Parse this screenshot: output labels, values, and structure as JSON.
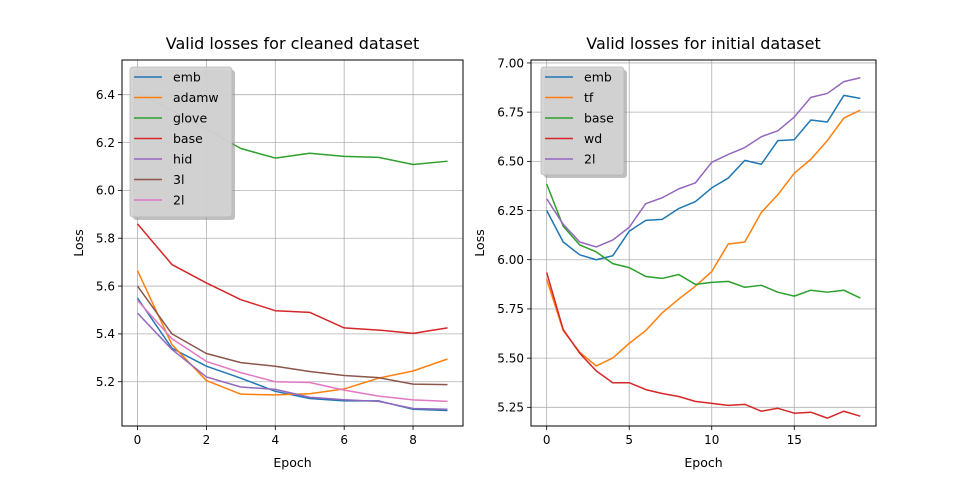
{
  "chart_data": [
    {
      "type": "line",
      "title": "Valid losses for cleaned dataset",
      "xlabel": "Epoch",
      "ylabel": "Loss",
      "xlim": [
        -0.45,
        9.45
      ],
      "ylim": [
        5.015,
        6.545
      ],
      "xticks": [
        0,
        2,
        4,
        6,
        8
      ],
      "xtick_labels": [
        "0",
        "2",
        "4",
        "6",
        "8"
      ],
      "yticks": [
        5.2,
        5.4,
        5.6,
        5.8,
        6.0,
        6.2,
        6.4
      ],
      "ytick_labels": [
        "5.2",
        "5.4",
        "5.6",
        "5.8",
        "6.0",
        "6.2",
        "6.4"
      ],
      "grid": true,
      "legend_position": "upper-left",
      "x": [
        0,
        1,
        2,
        3,
        4,
        5,
        6,
        7,
        8,
        9
      ],
      "series": [
        {
          "name": "emb",
          "color": "#1f77b4",
          "values": [
            5.55,
            5.34,
            5.265,
            5.215,
            5.16,
            5.13,
            5.12,
            5.12,
            5.085,
            5.08
          ]
        },
        {
          "name": "adamw",
          "color": "#ff7f0e",
          "values": [
            5.665,
            5.355,
            5.205,
            5.148,
            5.145,
            5.15,
            5.17,
            5.215,
            5.245,
            5.295
          ]
        },
        {
          "name": "glove",
          "color": "#2ca02c",
          "values": [
            6.41,
            6.335,
            6.255,
            6.175,
            6.135,
            6.155,
            6.142,
            6.138,
            6.108,
            6.122
          ]
        },
        {
          "name": "base",
          "color": "#d62728",
          "values": [
            5.86,
            5.69,
            5.613,
            5.543,
            5.497,
            5.49,
            5.425,
            5.416,
            5.402,
            5.425
          ]
        },
        {
          "name": "hid",
          "color": "#9467bd",
          "values": [
            5.487,
            5.335,
            5.22,
            5.178,
            5.168,
            5.135,
            5.125,
            5.118,
            5.088,
            5.085
          ]
        },
        {
          "name": "3l",
          "color": "#8c564b",
          "values": [
            5.6,
            5.4,
            5.318,
            5.28,
            5.265,
            5.243,
            5.226,
            5.217,
            5.19,
            5.188
          ]
        },
        {
          "name": "2l",
          "color": "#e377c2",
          "values": [
            5.54,
            5.38,
            5.285,
            5.238,
            5.2,
            5.197,
            5.165,
            5.14,
            5.124,
            5.118
          ]
        }
      ]
    },
    {
      "type": "line",
      "title": "Valid losses for initial dataset",
      "xlabel": "Epoch",
      "ylabel": "Loss",
      "xlim": [
        -0.95,
        19.95
      ],
      "ylim": [
        5.155,
        7.015
      ],
      "xticks": [
        0,
        5,
        10,
        15
      ],
      "xtick_labels": [
        "0",
        "5",
        "10",
        "15"
      ],
      "yticks": [
        5.25,
        5.5,
        5.75,
        6.0,
        6.25,
        6.5,
        6.75,
        7.0
      ],
      "ytick_labels": [
        "5.25",
        "5.50",
        "5.75",
        "6.00",
        "6.25",
        "6.50",
        "6.75",
        "7.00"
      ],
      "grid": true,
      "legend_position": "upper-left",
      "x": [
        0,
        1,
        2,
        3,
        4,
        5,
        6,
        7,
        8,
        9,
        10,
        11,
        12,
        13,
        14,
        15,
        16,
        17,
        18,
        19
      ],
      "series": [
        {
          "name": "emb",
          "color": "#1f77b4",
          "values": [
            6.25,
            6.09,
            6.025,
            6.0,
            6.02,
            6.145,
            6.2,
            6.205,
            6.26,
            6.295,
            6.365,
            6.415,
            6.505,
            6.485,
            6.605,
            6.61,
            6.71,
            6.7,
            6.835,
            6.82
          ]
        },
        {
          "name": "tf",
          "color": "#ff7f0e",
          "values": [
            5.9,
            5.64,
            5.53,
            5.46,
            5.5,
            5.575,
            5.64,
            5.73,
            5.8,
            5.865,
            5.94,
            6.08,
            6.09,
            6.24,
            6.33,
            6.44,
            6.51,
            6.605,
            6.72,
            6.76
          ]
        },
        {
          "name": "base",
          "color": "#2ca02c",
          "values": [
            6.385,
            6.17,
            6.075,
            6.04,
            5.98,
            5.96,
            5.915,
            5.905,
            5.925,
            5.875,
            5.885,
            5.89,
            5.86,
            5.87,
            5.835,
            5.815,
            5.845,
            5.835,
            5.845,
            5.805
          ]
        },
        {
          "name": "wd",
          "color": "#d62728",
          "values": [
            5.935,
            5.645,
            5.525,
            5.435,
            5.375,
            5.375,
            5.34,
            5.32,
            5.305,
            5.28,
            5.27,
            5.26,
            5.265,
            5.23,
            5.245,
            5.22,
            5.225,
            5.195,
            5.23,
            5.205
          ]
        },
        {
          "name": "2l",
          "color": "#9467bd",
          "values": [
            6.31,
            6.18,
            6.09,
            6.065,
            6.1,
            6.165,
            6.285,
            6.315,
            6.36,
            6.39,
            6.495,
            6.535,
            6.57,
            6.625,
            6.655,
            6.725,
            6.825,
            6.845,
            6.905,
            6.925
          ]
        }
      ]
    }
  ]
}
